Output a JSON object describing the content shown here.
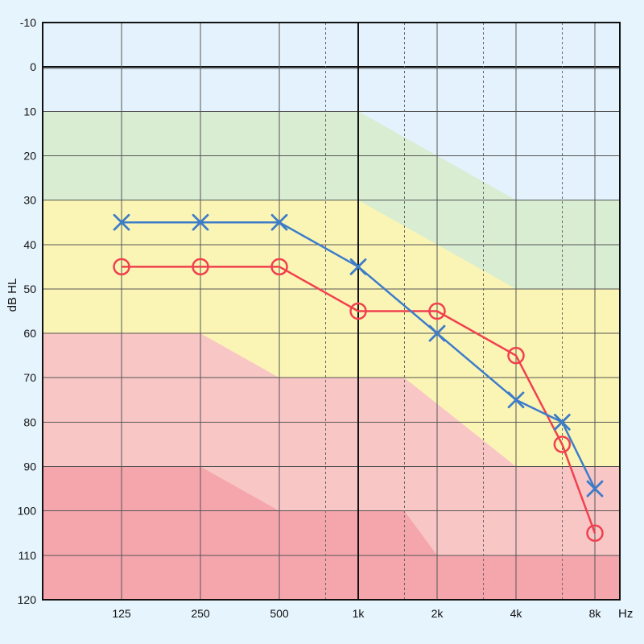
{
  "chart_data": {
    "type": "line",
    "title": "",
    "xlabel": "Hz",
    "ylabel": "dB HL",
    "x_scale": "log2",
    "y_inverted": true,
    "ylim": [
      -10,
      120
    ],
    "y_ticks": [
      -10,
      0,
      10,
      20,
      30,
      40,
      50,
      60,
      70,
      80,
      90,
      100,
      110,
      120
    ],
    "x_ticks": [
      {
        "hz": 125,
        "label": "125"
      },
      {
        "hz": 250,
        "label": "250"
      },
      {
        "hz": 500,
        "label": "500"
      },
      {
        "hz": 1000,
        "label": "1k"
      },
      {
        "hz": 2000,
        "label": "2k"
      },
      {
        "hz": 4000,
        "label": "4k"
      },
      {
        "hz": 8000,
        "label": "8k"
      }
    ],
    "x_minor_gridlines_hz": [
      750,
      1500,
      3000,
      6000
    ],
    "grid": true,
    "severity_bands": {
      "background": "#e3f2fc",
      "colors": [
        "#d8edd2",
        "#fbf5b5",
        "#f9c6c6",
        "#f5a6ad"
      ],
      "boundaries": [
        {
          "x_hz": [
            125,
            1000,
            4000,
            8000
          ],
          "y": [
            10,
            10,
            30,
            30
          ]
        },
        {
          "x_hz": [
            125,
            1000,
            4000,
            8000
          ],
          "y": [
            30,
            30,
            50,
            50
          ]
        },
        {
          "x_hz": [
            125,
            250,
            500,
            1500,
            4000,
            8000
          ],
          "y": [
            60,
            60,
            70,
            70,
            90,
            90
          ]
        },
        {
          "x_hz": [
            125,
            250,
            500,
            1500,
            2000,
            8000
          ],
          "y": [
            90,
            90,
            100,
            100,
            110,
            110
          ]
        }
      ]
    },
    "series": [
      {
        "marker": "circle",
        "color": "#f0414f",
        "points": [
          {
            "hz": 125,
            "db": 45
          },
          {
            "hz": 250,
            "db": 45
          },
          {
            "hz": 500,
            "db": 45
          },
          {
            "hz": 1000,
            "db": 55
          },
          {
            "hz": 2000,
            "db": 55
          },
          {
            "hz": 4000,
            "db": 65
          },
          {
            "hz": 6000,
            "db": 85
          },
          {
            "hz": 8000,
            "db": 105
          }
        ]
      },
      {
        "marker": "cross",
        "color": "#3d7cc9",
        "points": [
          {
            "hz": 125,
            "db": 35
          },
          {
            "hz": 250,
            "db": 35
          },
          {
            "hz": 500,
            "db": 35
          },
          {
            "hz": 1000,
            "db": 45
          },
          {
            "hz": 2000,
            "db": 60
          },
          {
            "hz": 4000,
            "db": 75
          },
          {
            "hz": 6000,
            "db": 80
          },
          {
            "hz": 8000,
            "db": 95
          }
        ]
      }
    ]
  }
}
